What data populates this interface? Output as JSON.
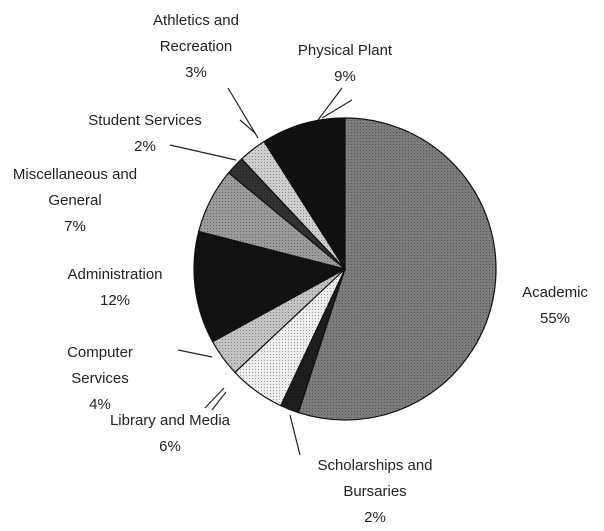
{
  "chart_data": {
    "type": "pie",
    "categories": [
      "Academic",
      "Scholarships and Bursaries",
      "Library and Media",
      "Computer Services",
      "Administration",
      "Miscellaneous and General",
      "Student Services",
      "Athletics and Recreation",
      "Physical Plant"
    ],
    "values": [
      55,
      2,
      6,
      4,
      12,
      7,
      2,
      3,
      9
    ],
    "value_labels": [
      "55%",
      "2%",
      "6%",
      "4%",
      "12%",
      "7%",
      "2%",
      "3%",
      "9%"
    ],
    "colors": [
      "#7d7d7d",
      "#1e1e1e",
      "#eeeeee",
      "#c4c4c4",
      "#121212",
      "#9c9c9c",
      "#333333",
      "#cfcfcf",
      "#111111"
    ]
  }
}
